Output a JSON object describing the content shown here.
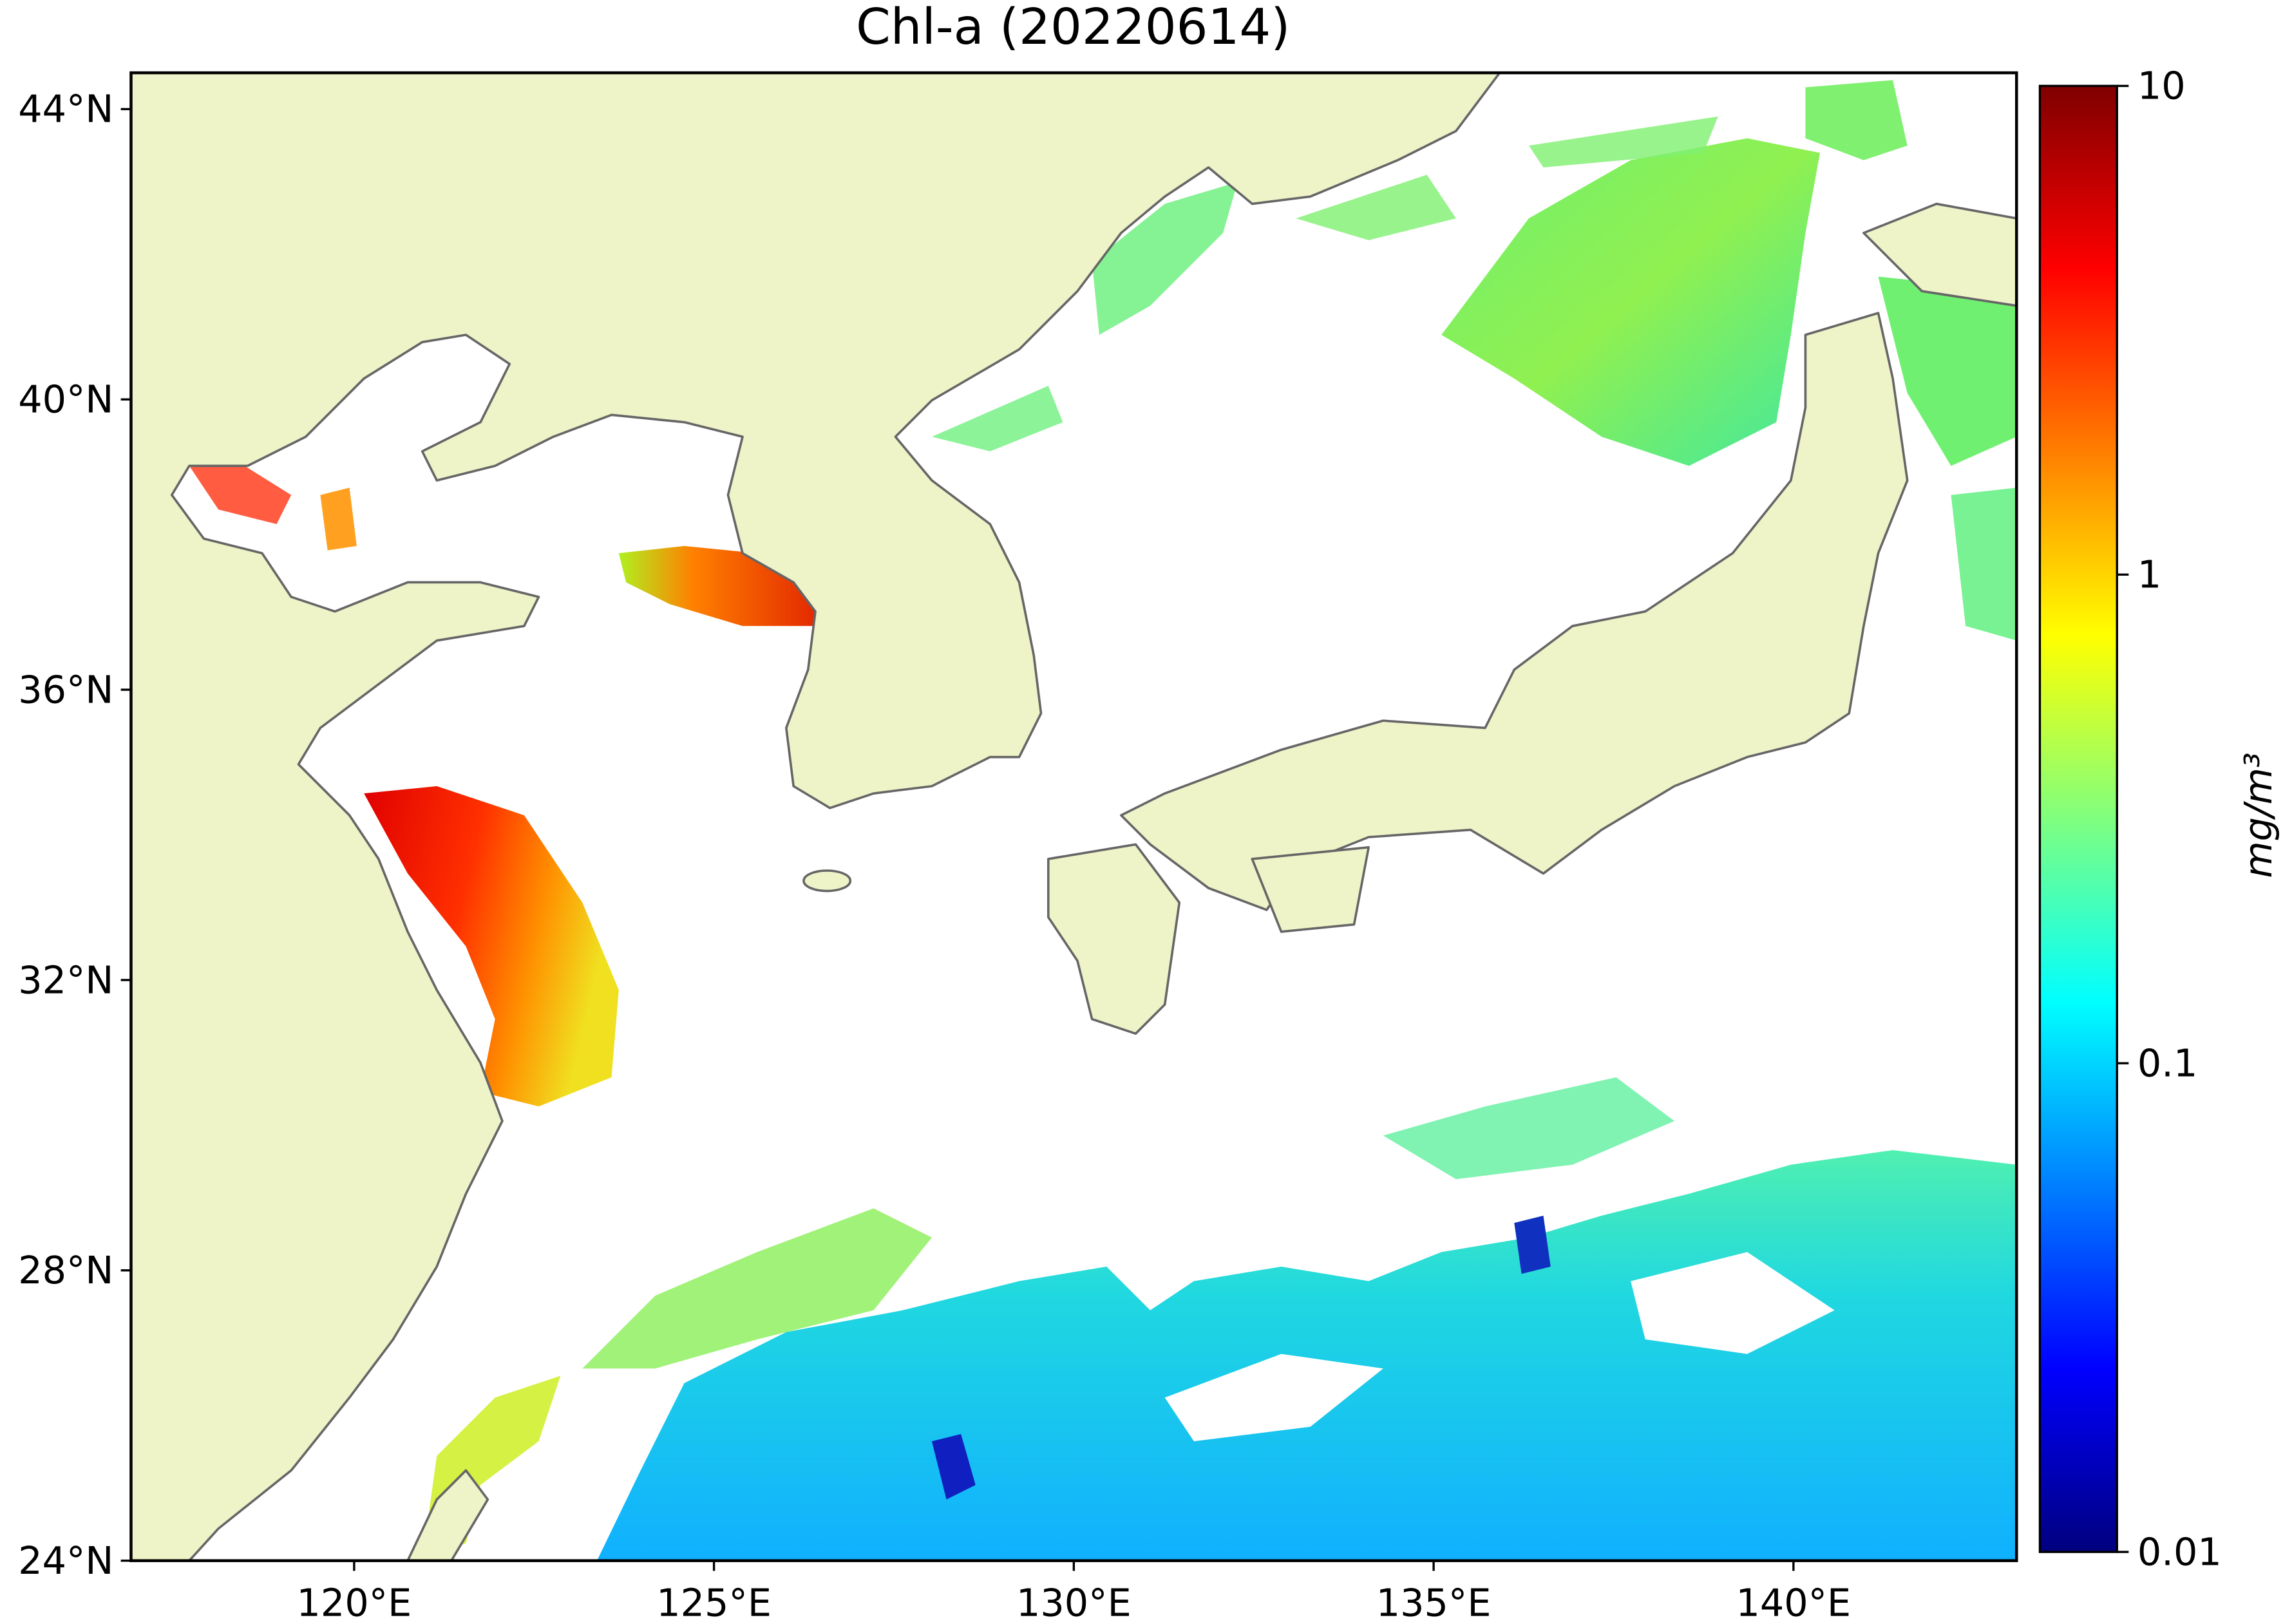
{
  "chart_data": {
    "type": "map",
    "title": "Chl-a (20220614)",
    "xlim": [
      116.9,
      143.1
    ],
    "ylim": [
      24,
      44.5
    ],
    "xticks": [
      {
        "value": 120,
        "label": "120°E"
      },
      {
        "value": 125,
        "label": "125°E"
      },
      {
        "value": 130,
        "label": "130°E"
      },
      {
        "value": 135,
        "label": "135°E"
      },
      {
        "value": 140,
        "label": "140°E"
      }
    ],
    "yticks": [
      {
        "value": 24,
        "label": "24°N"
      },
      {
        "value": 28,
        "label": "28°N"
      },
      {
        "value": 32,
        "label": "32°N"
      },
      {
        "value": 36,
        "label": "36°N"
      },
      {
        "value": 40,
        "label": "40°N"
      },
      {
        "value": 44,
        "label": "44°N"
      }
    ],
    "colorbar": {
      "scale": "log",
      "lim": [
        0.01,
        10
      ],
      "ticks": [
        0.01,
        0.1,
        1,
        10
      ],
      "label": "mg/m³",
      "colors": [
        "#00007f",
        "#0000ff",
        "#007fff",
        "#00ffff",
        "#7fff7f",
        "#ffff00",
        "#ff7f00",
        "#ff0000",
        "#7f0000"
      ]
    }
  }
}
